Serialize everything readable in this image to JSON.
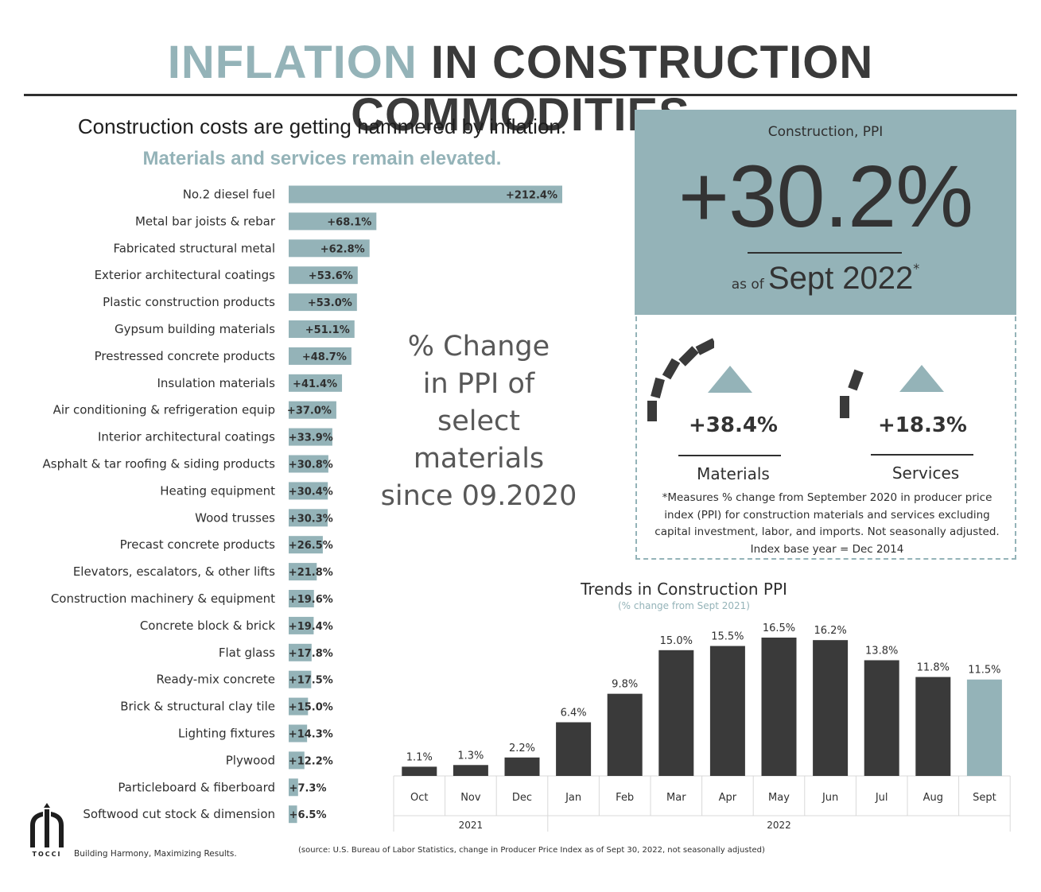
{
  "header": {
    "title_accent": "INFLATION",
    "title_rest": "IN CONSTRUCTION COMMODITIES",
    "subtitle": "Construction costs are getting hammered by inflation.",
    "subtitle2": "Materials and services remain elevated."
  },
  "center_note": {
    "lines": [
      "% Change",
      "in PPI of",
      "select",
      "materials",
      "since 09.2020"
    ]
  },
  "ppi_box": {
    "label": "Construction, PPI",
    "value": "+30.2%",
    "as_of_prefix": "as of",
    "as_of_date": "Sept 2022",
    "as_of_mark": "*"
  },
  "stats": {
    "materials": {
      "value": "+38.4%",
      "label": "Materials"
    },
    "services": {
      "value": "+18.3%",
      "label": "Services"
    },
    "footnote": "*Measures % change from September 2020 in producer price index (PPI) for construction materials and services excluding capital investment, labor, and imports. Not seasonally adjusted. Index base year = Dec 2014"
  },
  "trend": {
    "title": "Trends in Construction PPI",
    "subtitle": "(% change from Sept 2021)"
  },
  "footer": {
    "logo_text": "TOCCI",
    "tagline": "Building Harmony, Maximizing Results.",
    "source": "(source: U.S. Bureau of Labor Statistics, change in Producer Price Index as of Sept 30, 2022, not seasonally adjusted)"
  },
  "colors": {
    "accent": "#94b3b8",
    "dark": "#3a3a3a"
  },
  "chart_data": [
    {
      "type": "bar",
      "orientation": "horizontal",
      "title": "% Change in PPI of select materials since 09.2020",
      "categories": [
        "No.2 diesel fuel",
        "Metal bar joists & rebar",
        "Fabricated structural metal",
        "Exterior architectural coatings",
        "Plastic construction products",
        "Gypsum building materials",
        "Prestressed concrete products",
        "Insulation materials",
        "Air conditioning & refrigeration equip",
        "Interior architectural coatings",
        "Asphalt & tar roofing & siding products",
        "Heating equipment",
        "Wood trusses",
        "Precast concrete products",
        "Elevators, escalators, & other lifts",
        "Construction machinery & equipment",
        "Concrete block & brick",
        "Flat glass",
        "Ready-mix concrete",
        "Brick & structural clay tile",
        "Lighting fixtures",
        "Plywood",
        "Particleboard & fiberboard",
        "Softwood cut stock & dimension"
      ],
      "values": [
        212.4,
        68.1,
        62.8,
        53.6,
        53.0,
        51.1,
        48.7,
        41.4,
        37.0,
        33.9,
        30.8,
        30.4,
        30.3,
        26.5,
        21.8,
        19.6,
        19.4,
        17.8,
        17.5,
        15.0,
        14.3,
        12.2,
        7.3,
        6.5
      ],
      "labels": [
        "+212.4%",
        "+68.1%",
        "+62.8%",
        "+53.6%",
        "+53.0%",
        "+51.1%",
        "+48.7%",
        "+41.4%",
        "+37.0%",
        "+33.9%",
        "+30.8%",
        "+30.4%",
        "+30.3%",
        "+26.5%",
        "+21.8%",
        "+19.6%",
        "+19.4%",
        "+17.8%",
        "+17.5%",
        "+15.0%",
        "+14.3%",
        "+12.2%",
        "+7.3%",
        "+6.5%"
      ],
      "xlim": [
        0,
        212.4
      ],
      "grid": false,
      "color": "#94b3b8"
    },
    {
      "type": "bar",
      "title": "Trends in Construction PPI",
      "subtitle": "(% change from Sept 2021)",
      "categories": [
        "Oct",
        "Nov",
        "Dec",
        "Jan",
        "Feb",
        "Mar",
        "Apr",
        "May",
        "Jun",
        "Jul",
        "Aug",
        "Sept"
      ],
      "years": [
        {
          "label": "2021",
          "months": [
            "Oct",
            "Nov",
            "Dec"
          ]
        },
        {
          "label": "2022",
          "months": [
            "Jan",
            "Feb",
            "Mar",
            "Apr",
            "May",
            "Jun",
            "Jul",
            "Aug",
            "Sept"
          ]
        }
      ],
      "values": [
        1.1,
        1.3,
        2.2,
        6.4,
        9.8,
        15.0,
        15.5,
        16.5,
        16.2,
        13.8,
        11.8,
        11.5
      ],
      "labels": [
        "1.1%",
        "1.3%",
        "2.2%",
        "6.4%",
        "9.8%",
        "15.0%",
        "15.5%",
        "16.5%",
        "16.2%",
        "13.8%",
        "11.8%",
        "11.5%"
      ],
      "ylim": [
        0,
        16.5
      ],
      "grid": false,
      "colors": [
        "#3a3a3a",
        "#3a3a3a",
        "#3a3a3a",
        "#3a3a3a",
        "#3a3a3a",
        "#3a3a3a",
        "#3a3a3a",
        "#3a3a3a",
        "#3a3a3a",
        "#3a3a3a",
        "#3a3a3a",
        "#94b3b8"
      ]
    }
  ]
}
